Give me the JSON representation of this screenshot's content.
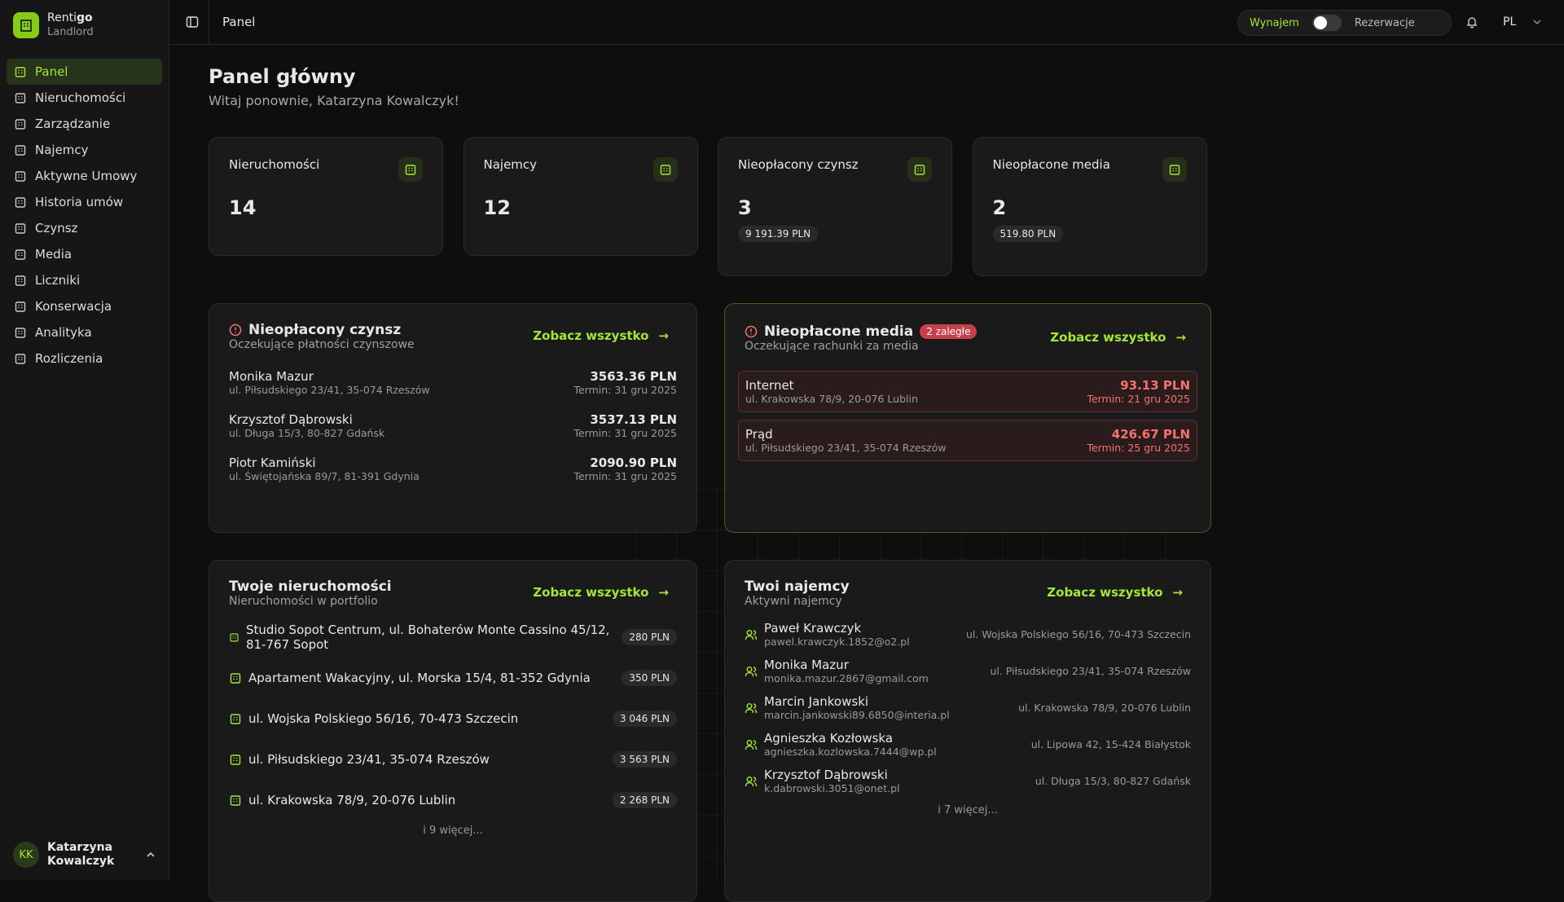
{
  "sidebar": {
    "brand": {
      "name": "Renti",
      "name_bold": "go",
      "role": "Landlord"
    },
    "nav": [
      "Panel",
      "Nieruchomości",
      "Zarządzanie",
      "Najemcy",
      "Aktywne Umowy",
      "Historia umów",
      "Czynsz",
      "Media",
      "Liczniki",
      "Konserwacja",
      "Analityka",
      "Rozliczenia"
    ],
    "user": {
      "initials": "KK",
      "name": "Katarzyna Kowalczyk"
    }
  },
  "topbar": {
    "title": "Panel",
    "mode": "Wynajem",
    "reservations": "Rezerwacje",
    "language": "PL"
  },
  "header": {
    "title": "Panel główny",
    "subtitle": "Witaj ponownie, Katarzyna Kowalczyk!"
  },
  "stats": [
    {
      "label": "Nieruchomości",
      "value": "14"
    },
    {
      "label": "Najemcy",
      "value": "12"
    },
    {
      "label": "Nieopłacony czynsz",
      "value": "3",
      "amount": "9 191.39 PLN"
    },
    {
      "label": "Nieopłacone media",
      "value": "2",
      "amount": "519.80 PLN"
    }
  ],
  "unpaid_rent": {
    "title": "Nieopłacony czynsz",
    "subtitle": "Oczekujące płatności czynszowe",
    "link": "Zobacz wszystko",
    "items": [
      {
        "name": "Monika Mazur",
        "address": "ul. Piłsudskiego 23/41, 35-074 Rzeszów",
        "amount": "3563.36 PLN",
        "due": "Termin: 31 gru 2025"
      },
      {
        "name": "Krzysztof Dąbrowski",
        "address": "ul. Długa 15/3, 80-827 Gdańsk",
        "amount": "3537.13 PLN",
        "due": "Termin: 31 gru 2025"
      },
      {
        "name": "Piotr Kamiński",
        "address": "ul. Świętojańska 89/7, 81-391 Gdynia",
        "amount": "2090.90 PLN",
        "due": "Termin: 31 gru 2025"
      }
    ]
  },
  "unpaid_media": {
    "title": "Nieopłacone media",
    "badge": "2 zaległe",
    "subtitle": "Oczekujące rachunki za media",
    "link": "Zobacz wszystko",
    "items": [
      {
        "name": "Internet",
        "address": "ul. Krakowska 78/9, 20-076 Lublin",
        "amount": "93.13 PLN",
        "due": "Termin: 21 gru 2025"
      },
      {
        "name": "Prąd",
        "address": "ul. Piłsudskiego 23/41, 35-074 Rzeszów",
        "amount": "426.67 PLN",
        "due": "Termin: 25 gru 2025"
      }
    ]
  },
  "properties": {
    "title": "Twoje nieruchomości",
    "subtitle": "Nieruchomości w portfolio",
    "link": "Zobacz wszystko",
    "items": [
      {
        "name": "Studio Sopot Centrum, ul. Bohaterów Monte Cassino 45/12, 81-767 Sopot",
        "price": "280 PLN"
      },
      {
        "name": "Apartament Wakacyjny, ul. Morska 15/4, 81-352 Gdynia",
        "price": "350 PLN"
      },
      {
        "name": "ul. Wojska Polskiego 56/16, 70-473 Szczecin",
        "price": "3 046 PLN"
      },
      {
        "name": "ul. Piłsudskiego 23/41, 35-074 Rzeszów",
        "price": "3 563 PLN"
      },
      {
        "name": "ul. Krakowska 78/9, 20-076 Lublin",
        "price": "2 268 PLN"
      }
    ],
    "more": "i 9 więcej..."
  },
  "tenants": {
    "title": "Twoi najemcy",
    "subtitle": "Aktywni najemcy",
    "link": "Zobacz wszystko",
    "items": [
      {
        "name": "Paweł Krawczyk",
        "email": "pawel.krawczyk.1852@o2.pl",
        "address": "ul. Wojska Polskiego 56/16, 70-473 Szczecin"
      },
      {
        "name": "Monika Mazur",
        "email": "monika.mazur.2867@gmail.com",
        "address": "ul. Piłsudskiego 23/41, 35-074 Rzeszów"
      },
      {
        "name": "Marcin Jankowski",
        "email": "marcin.jankowski89.6850@interia.pl",
        "address": "ul. Krakowska 78/9, 20-076 Lublin"
      },
      {
        "name": "Agnieszka Kozłowska",
        "email": "agnieszka.kozlowska.7444@wp.pl",
        "address": "ul. Lipowa 42, 15-424 Białystok"
      },
      {
        "name": "Krzysztof Dąbrowski",
        "email": "k.dabrowski.3051@onet.pl",
        "address": "ul. Długa 15/3, 80-827 Gdańsk"
      }
    ],
    "more": "i 7 więcej..."
  }
}
